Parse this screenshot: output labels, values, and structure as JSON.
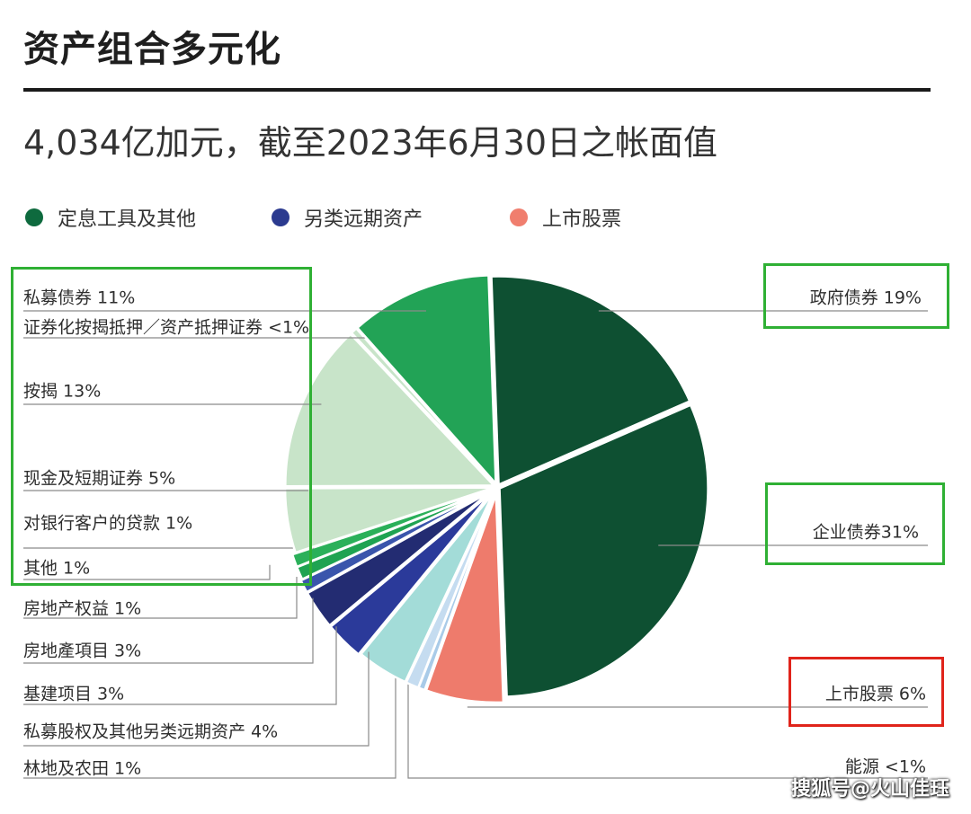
{
  "header": {
    "title": "资产组合多元化",
    "subtitle": "4,034亿加元，截至2023年6月30日之帐面值"
  },
  "legend": [
    {
      "label": "定息工具及其他",
      "color": "#0e6a3e"
    },
    {
      "label": "另类远期资产",
      "color": "#2b3a8f"
    },
    {
      "label": "上市股票",
      "color": "#f07e6e"
    }
  ],
  "chart_data": {
    "type": "pie",
    "title": "",
    "slices": [
      {
        "label": "政府债券 19%",
        "value": 19,
        "group": "定息工具及其他",
        "color": "#0e5032"
      },
      {
        "label": "企业债券31%",
        "value": 31,
        "group": "定息工具及其他",
        "color": "#0e5032"
      },
      {
        "label": "上市股票 6%",
        "value": 6,
        "group": "上市股票",
        "color": "#ee7b6c"
      },
      {
        "label": "能源 <1%",
        "value": 0.5,
        "group": "另类远期资产",
        "color": "#a9cbe8"
      },
      {
        "label": "林地及农田 1%",
        "value": 1,
        "group": "另类远期资产",
        "color": "#c5dcf0"
      },
      {
        "label": "私募股权及其他另类远期资产 4%",
        "value": 4,
        "group": "另类远期资产",
        "color": "#a3dcd8"
      },
      {
        "label": "基建项目 3%",
        "value": 3,
        "group": "另类远期资产",
        "color": "#2b3a9a"
      },
      {
        "label": "房地產項目 3%",
        "value": 3,
        "group": "另类远期资产",
        "color": "#232c72"
      },
      {
        "label": "房地产权益 1%",
        "value": 1,
        "group": "另类远期资产",
        "color": "#3a55ac"
      },
      {
        "label": "其他 1%",
        "value": 1,
        "group": "定息工具及其他",
        "color": "#1fa352"
      },
      {
        "label": "对银行客户的贷款 1%",
        "value": 1,
        "group": "定息工具及其他",
        "color": "#2bb05a"
      },
      {
        "label": "现金及短期证券 5%",
        "value": 5,
        "group": "定息工具及其他",
        "color": "#c8e4c9"
      },
      {
        "label": "按揭 13%",
        "value": 13,
        "group": "定息工具及其他",
        "color": "#c8e4c9"
      },
      {
        "label": "证券化按揭抵押／资产抵押证券 <1%",
        "value": 0.5,
        "group": "定息工具及其他",
        "color": "#c8e4c9"
      },
      {
        "label": "私募债券 11%",
        "value": 11,
        "group": "定息工具及其他",
        "color": "#22a356"
      }
    ],
    "mortgage_footnote": "1",
    "legend_placement": "top-left"
  },
  "watermark": "搜狐号@火山佳珏"
}
